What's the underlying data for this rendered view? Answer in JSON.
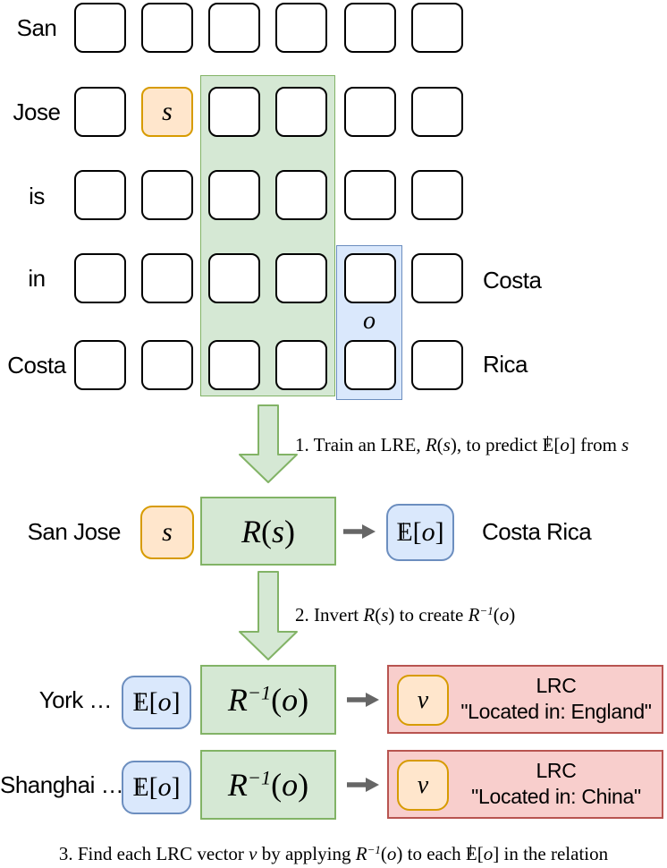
{
  "palette": {
    "green_fill": "#d5e8d4",
    "green_stroke": "#82b366",
    "orange_fill": "#ffe6cc",
    "orange_stroke": "#d79b00",
    "blue_fill": "#dae8fc",
    "blue_stroke": "#6c8ebf",
    "red_fill": "#f8cecc",
    "red_stroke": "#b85450",
    "arrow_gray": "#666666",
    "cell_stroke": "#000000"
  },
  "grid": {
    "row_labels": [
      "San",
      "Jose",
      "is",
      "in",
      "Costa"
    ],
    "right_labels": [
      "Costa",
      "Rica"
    ],
    "s_label": "s",
    "o_label": "o"
  },
  "steps": {
    "step1": {
      "segments": [
        {
          "t": "1. Train an LRE, ",
          "s": "p"
        },
        {
          "t": "R",
          "s": "m"
        },
        {
          "t": "(",
          "s": "p"
        },
        {
          "t": "s",
          "s": "m"
        },
        {
          "t": ")",
          "s": "p"
        },
        {
          "t": ", to predict ",
          "s": "p"
        },
        {
          "t": "E",
          "s": "bb"
        },
        {
          "t": "[",
          "s": "p"
        },
        {
          "t": "o",
          "s": "m"
        },
        {
          "t": "]",
          "s": "p"
        },
        {
          "t": " from ",
          "s": "p"
        },
        {
          "t": "s",
          "s": "m"
        }
      ]
    },
    "step2": {
      "segments": [
        {
          "t": "2. Invert ",
          "s": "p"
        },
        {
          "t": "R",
          "s": "m"
        },
        {
          "t": "(",
          "s": "p"
        },
        {
          "t": "s",
          "s": "m"
        },
        {
          "t": ")",
          "s": "p"
        },
        {
          "t": " to create ",
          "s": "p"
        },
        {
          "t": "R",
          "s": "m"
        },
        {
          "t": "−1",
          "s": "sup"
        },
        {
          "t": "(",
          "s": "p"
        },
        {
          "t": "o",
          "s": "m"
        },
        {
          "t": ")",
          "s": "p"
        }
      ]
    },
    "step3": {
      "segments": [
        {
          "t": "3. Find each LRC vector ",
          "s": "p"
        },
        {
          "t": "v",
          "s": "m"
        },
        {
          "t": " by applying ",
          "s": "p"
        },
        {
          "t": "R",
          "s": "m"
        },
        {
          "t": "−1",
          "s": "sup"
        },
        {
          "t": "(",
          "s": "p"
        },
        {
          "t": "o",
          "s": "m"
        },
        {
          "t": ")",
          "s": "p"
        },
        {
          "t": " to each ",
          "s": "p"
        },
        {
          "t": "E",
          "s": "bb"
        },
        {
          "t": "[",
          "s": "p"
        },
        {
          "t": "o",
          "s": "m"
        },
        {
          "t": "]",
          "s": "p"
        },
        {
          "t": " in the relation",
          "s": "p"
        }
      ]
    }
  },
  "lre_row": {
    "left_text": "San Jose",
    "s_label": "s",
    "box_label": {
      "segments": [
        {
          "t": "R",
          "s": "m"
        },
        {
          "t": "(",
          "s": "p"
        },
        {
          "t": "s",
          "s": "m"
        },
        {
          "t": ")",
          "s": "p"
        }
      ]
    },
    "output_label": {
      "segments": [
        {
          "t": "E",
          "s": "bb"
        },
        {
          "t": "[",
          "s": "p"
        },
        {
          "t": "o",
          "s": "m"
        },
        {
          "t": "]",
          "s": "p"
        }
      ]
    },
    "right_text": "Costa Rica"
  },
  "lrc_rows": [
    {
      "left_text": "York …",
      "input_label": {
        "segments": [
          {
            "t": "E",
            "s": "bb"
          },
          {
            "t": "[",
            "s": "p"
          },
          {
            "t": "o",
            "s": "m"
          },
          {
            "t": "]",
            "s": "p"
          }
        ]
      },
      "box_label": {
        "segments": [
          {
            "t": "R",
            "s": "m"
          },
          {
            "t": "−1",
            "s": "sup"
          },
          {
            "t": "(",
            "s": "p"
          },
          {
            "t": "o",
            "s": "m"
          },
          {
            "t": ")",
            "s": "p"
          }
        ]
      },
      "v_label": "v",
      "lrc_title": "LRC",
      "lrc_quote": "\"Located in: England\""
    },
    {
      "left_text": "Shanghai …",
      "input_label": {
        "segments": [
          {
            "t": "E",
            "s": "bb"
          },
          {
            "t": "[",
            "s": "p"
          },
          {
            "t": "o",
            "s": "m"
          },
          {
            "t": "]",
            "s": "p"
          }
        ]
      },
      "box_label": {
        "segments": [
          {
            "t": "R",
            "s": "m"
          },
          {
            "t": "−1",
            "s": "sup"
          },
          {
            "t": "(",
            "s": "p"
          },
          {
            "t": "o",
            "s": "m"
          },
          {
            "t": ")",
            "s": "p"
          }
        ]
      },
      "v_label": "v",
      "lrc_title": "LRC",
      "lrc_quote": "\"Located in: China\""
    }
  ]
}
